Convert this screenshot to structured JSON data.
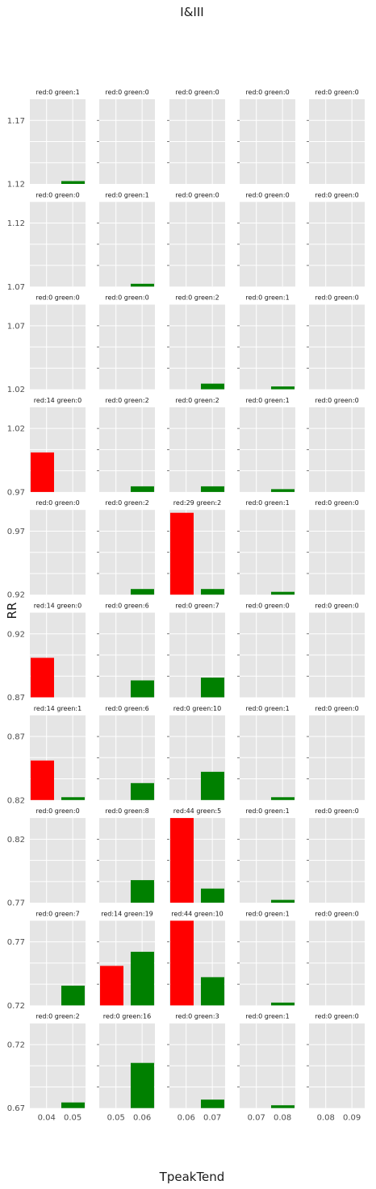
{
  "figure": {
    "title": "I&III",
    "xlabel": "TpeakTend",
    "ylabel": "RR"
  },
  "colors": {
    "red": "#ff0000",
    "green": "#008000",
    "panel_bg": "#e5e5e5",
    "grid": "#ffffff"
  },
  "chart_data": {
    "type": "bar",
    "grid": true,
    "rows": 10,
    "cols": 5,
    "row_ylabels": [
      [
        "1.17",
        "1.12"
      ],
      [
        "1.12",
        "1.07"
      ],
      [
        "1.07",
        "1.02"
      ],
      [
        "1.02",
        "0.97"
      ],
      [
        "0.97",
        "0.92"
      ],
      [
        "0.92",
        "0.87"
      ],
      [
        "0.87",
        "0.82"
      ],
      [
        "0.82",
        "0.77"
      ],
      [
        "0.77",
        "0.72"
      ],
      [
        "0.72",
        "0.67"
      ]
    ],
    "col_xticks": [
      [
        "0.04",
        "0.05"
      ],
      [
        "0.05",
        "0.06"
      ],
      [
        "0.06",
        "0.07"
      ],
      [
        "0.07",
        "0.08"
      ],
      [
        "0.08",
        "0.09"
      ]
    ],
    "ylim": [
      0,
      30
    ],
    "panels": [
      [
        {
          "red": 0,
          "green": 1
        },
        {
          "red": 0,
          "green": 0
        },
        {
          "red": 0,
          "green": 0
        },
        {
          "red": 0,
          "green": 0
        },
        {
          "red": 0,
          "green": 0
        }
      ],
      [
        {
          "red": 0,
          "green": 0
        },
        {
          "red": 0,
          "green": 1
        },
        {
          "red": 0,
          "green": 0
        },
        {
          "red": 0,
          "green": 0
        },
        {
          "red": 0,
          "green": 0
        }
      ],
      [
        {
          "red": 0,
          "green": 0
        },
        {
          "red": 0,
          "green": 0
        },
        {
          "red": 0,
          "green": 2
        },
        {
          "red": 0,
          "green": 1
        },
        {
          "red": 0,
          "green": 0
        }
      ],
      [
        {
          "red": 14,
          "green": 0
        },
        {
          "red": 0,
          "green": 2
        },
        {
          "red": 0,
          "green": 2
        },
        {
          "red": 0,
          "green": 1
        },
        {
          "red": 0,
          "green": 0
        }
      ],
      [
        {
          "red": 0,
          "green": 0
        },
        {
          "red": 0,
          "green": 2
        },
        {
          "red": 29,
          "green": 2
        },
        {
          "red": 0,
          "green": 1
        },
        {
          "red": 0,
          "green": 0
        }
      ],
      [
        {
          "red": 14,
          "green": 0
        },
        {
          "red": 0,
          "green": 6
        },
        {
          "red": 0,
          "green": 7
        },
        {
          "red": 0,
          "green": 0
        },
        {
          "red": 0,
          "green": 0
        }
      ],
      [
        {
          "red": 14,
          "green": 1
        },
        {
          "red": 0,
          "green": 6
        },
        {
          "red": 0,
          "green": 10
        },
        {
          "red": 0,
          "green": 1
        },
        {
          "red": 0,
          "green": 0
        }
      ],
      [
        {
          "red": 0,
          "green": 0
        },
        {
          "red": 0,
          "green": 8
        },
        {
          "red": 44,
          "green": 5
        },
        {
          "red": 0,
          "green": 1
        },
        {
          "red": 0,
          "green": 0
        }
      ],
      [
        {
          "red": 0,
          "green": 7
        },
        {
          "red": 14,
          "green": 19
        },
        {
          "red": 44,
          "green": 10
        },
        {
          "red": 0,
          "green": 1
        },
        {
          "red": 0,
          "green": 0
        }
      ],
      [
        {
          "red": 0,
          "green": 2
        },
        {
          "red": 0,
          "green": 16
        },
        {
          "red": 0,
          "green": 3
        },
        {
          "red": 0,
          "green": 1
        },
        {
          "red": 0,
          "green": 0
        }
      ]
    ]
  }
}
